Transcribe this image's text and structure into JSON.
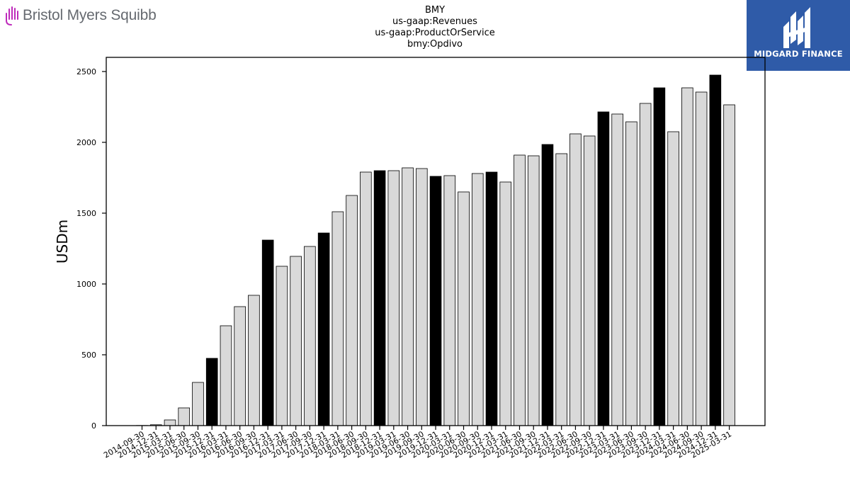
{
  "brand": {
    "company_logo_text": "Bristol Myers Squibb",
    "partner_logo_text": "MIDGARD FINANCE"
  },
  "colors": {
    "bar_default": "#d9d9d9",
    "bar_highlight": "#000000",
    "bar_edge": "#000000",
    "partner_background": "#2f5ba8",
    "company_logo_accent": "#be2bbb"
  },
  "chart_data": {
    "type": "bar",
    "title": [
      "BMY",
      "us-gaap:Revenues",
      "us-gaap:ProductOrService",
      "bmy:Opdivo"
    ],
    "xlabel": "",
    "ylabel": "USDm",
    "ylim": [
      0,
      2600
    ],
    "yticks": [
      0,
      500,
      1000,
      1500,
      2000,
      2500
    ],
    "grid": false,
    "categories": [
      "2014-09-30",
      "2014-12-31",
      "2015-03-31",
      "2015-06-30",
      "2015-09-30",
      "2015-12-31",
      "2016-03-31",
      "2016-06-30",
      "2016-09-30",
      "2016-12-31",
      "2017-03-31",
      "2017-06-30",
      "2017-09-30",
      "2017-12-31",
      "2018-03-31",
      "2018-06-30",
      "2018-09-30",
      "2018-12-31",
      "2019-03-31",
      "2019-06-30",
      "2019-09-30",
      "2019-12-31",
      "2020-03-31",
      "2020-06-30",
      "2020-09-30",
      "2020-12-31",
      "2021-03-31",
      "2021-06-30",
      "2021-09-30",
      "2021-12-31",
      "2022-03-31",
      "2022-06-30",
      "2022-09-30",
      "2022-12-31",
      "2023-03-31",
      "2023-06-30",
      "2023-09-30",
      "2023-12-31",
      "2024-03-31",
      "2024-06-30",
      "2024-09-30",
      "2024-12-31",
      "2025-03-31"
    ],
    "values": [
      1,
      6,
      40,
      125,
      305,
      475,
      705,
      840,
      920,
      1310,
      1125,
      1195,
      1265,
      1360,
      1510,
      1625,
      1790,
      1800,
      1800,
      1820,
      1815,
      1760,
      1765,
      1650,
      1780,
      1790,
      1720,
      1910,
      1905,
      1985,
      1920,
      2060,
      2045,
      2215,
      2200,
      2145,
      2275,
      2385,
      2075,
      2385,
      2355,
      2475,
      2265
    ],
    "highlighted": [
      false,
      false,
      false,
      false,
      false,
      true,
      false,
      false,
      false,
      true,
      false,
      false,
      false,
      true,
      false,
      false,
      false,
      true,
      false,
      false,
      false,
      true,
      false,
      false,
      false,
      true,
      false,
      false,
      false,
      true,
      false,
      false,
      false,
      true,
      false,
      false,
      false,
      true,
      false,
      false,
      false,
      true,
      false
    ]
  }
}
